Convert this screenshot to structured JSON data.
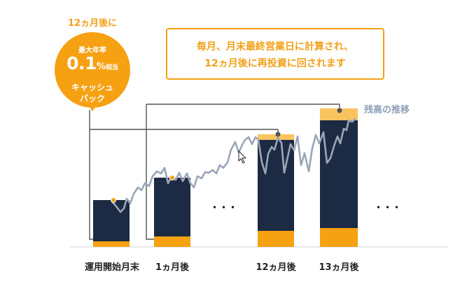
{
  "badge": {
    "caption": "12ヵ月後に",
    "line1": "最大年率",
    "rate": "0.1",
    "percent": "%",
    "suffix": "相当",
    "line3": "キャッシュ",
    "line4": "バック",
    "color": "#f5a112"
  },
  "note": {
    "line1": "毎月、月末最終営業日に計算され、",
    "line2": "12ヵ月後に再投資に回されます"
  },
  "balance_label": "残高の推移",
  "ellipsis": "・・・",
  "colors": {
    "bar_dark": "#1c2a43",
    "bar_orange": "#f5a112",
    "bar_light": "#f9c35f",
    "line": "#9aa6b7",
    "connector": "#555555"
  },
  "x_labels": [
    "運用開始月末",
    "1ヵ月後",
    "12ヵ月後",
    "13ヵ月後"
  ]
}
